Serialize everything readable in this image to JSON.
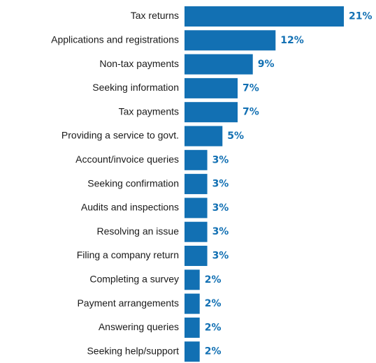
{
  "chart_data": {
    "type": "bar",
    "orientation": "horizontal",
    "categories": [
      "Tax returns",
      "Applications and registrations",
      "Non-tax payments",
      "Seeking information",
      "Tax payments",
      "Providing a service to govt.",
      "Account/invoice queries",
      "Seeking confirmation",
      "Audits and inspections",
      "Resolving an issue",
      "Filing a company return",
      "Completing a survey",
      "Payment arrangements",
      "Answering queries",
      "Seeking help/support"
    ],
    "values": [
      21,
      12,
      9,
      7,
      7,
      5,
      3,
      3,
      3,
      3,
      3,
      2,
      2,
      2,
      2
    ],
    "value_labels": [
      "21%",
      "12%",
      "9%",
      "7%",
      "7%",
      "5%",
      "3%",
      "3%",
      "3%",
      "3%",
      "3%",
      "2%",
      "2%",
      "2%",
      "2%"
    ],
    "unit": "%",
    "title": "",
    "xlabel": "",
    "ylabel": "",
    "xlim": [
      0,
      21
    ],
    "grid": false,
    "legend": "none",
    "colors": {
      "bar": "#1270b3",
      "value_label": "#1270b3",
      "category_label": "#1a1a1a"
    }
  }
}
